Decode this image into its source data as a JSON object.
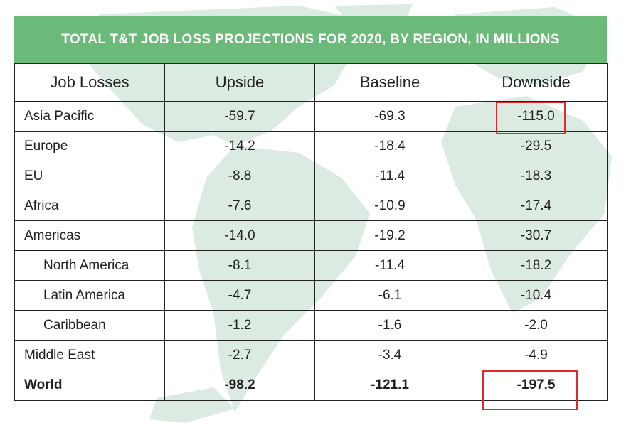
{
  "title": "TOTAL T&T JOB LOSS PROJECTIONS FOR 2020, BY REGION, IN MILLIONS",
  "columns": [
    "Job Losses",
    "Upside",
    "Baseline",
    "Downside"
  ],
  "rows": [
    {
      "label": "Asia Pacific",
      "upside": "-59.7",
      "baseline": "-69.3",
      "downside": "-115.0"
    },
    {
      "label": "Europe",
      "upside": "-14.2",
      "baseline": "-18.4",
      "downside": "-29.5"
    },
    {
      "label": "EU",
      "upside": "-8.8",
      "baseline": "-11.4",
      "downside": "-18.3"
    },
    {
      "label": "Africa",
      "upside": "-7.6",
      "baseline": "-10.9",
      "downside": "-17.4"
    },
    {
      "label": "Americas",
      "upside": "-14.0",
      "baseline": "-19.2",
      "downside": "-30.7"
    },
    {
      "label": "North America",
      "upside": "-8.1",
      "baseline": "-11.4",
      "downside": "-18.2"
    },
    {
      "label": "Latin America",
      "upside": "-4.7",
      "baseline": "-6.1",
      "downside": "-10.4"
    },
    {
      "label": "Caribbean",
      "upside": "-1.2",
      "baseline": "-1.6",
      "downside": "-2.0"
    },
    {
      "label": "Middle East",
      "upside": "-2.7",
      "baseline": "-3.4",
      "downside": "-4.9"
    },
    {
      "label": "World",
      "upside": "-98.2",
      "baseline": "-121.1",
      "downside": "-197.5"
    }
  ],
  "highlights": [
    "Asia Pacific downside",
    "World downside"
  ],
  "colors": {
    "header_bg": "#6cba7a",
    "header_text": "#ffffff",
    "highlight_box": "#e0282e",
    "map_tint": "#dcebe1"
  }
}
